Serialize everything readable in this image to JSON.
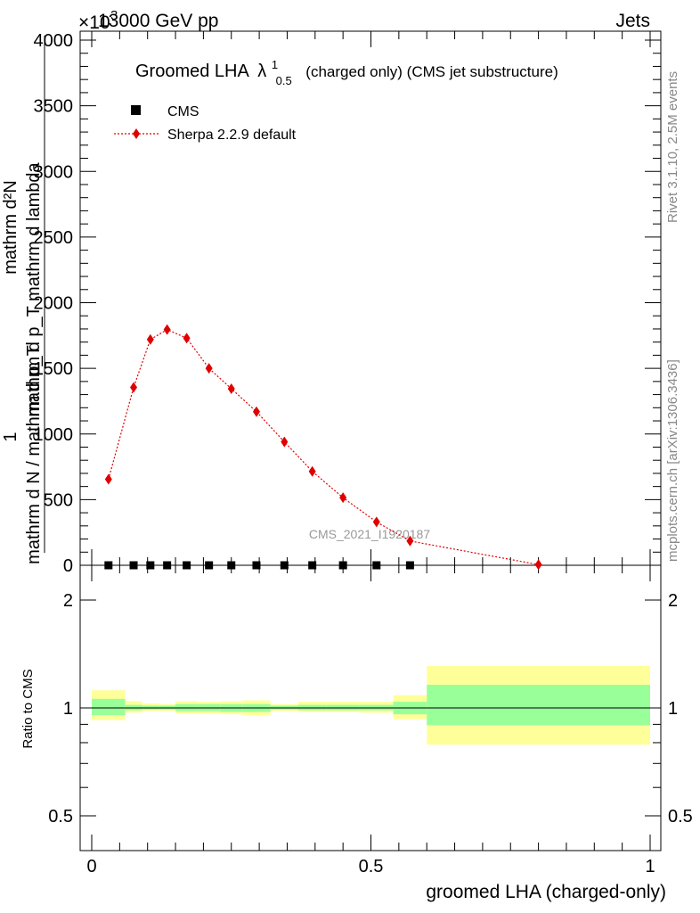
{
  "header": {
    "energy": "13000 GeV pp",
    "category": "Jets",
    "exponent": "×10",
    "exponent_power": "3"
  },
  "side_labels": {
    "version": "Rivet 3.1.10,  2.5M events",
    "site": "mcplots.cern.ch [arXiv:1306.3436]"
  },
  "watermark": "CMS_2021_I1920187",
  "title": {
    "main": "Groomed LHA",
    "symbol": "λ",
    "sup": "1",
    "sub": "0.5",
    "rest": "(charged only) (CMS jet substructure)"
  },
  "ylabel": {
    "numerator": "mathrm d²N",
    "denominator": "mathrm d p_T mathrm d lambda",
    "left": "1",
    "left_den": "mathrm d N / mathrm d p_T"
  },
  "ratio_ylabel": "Ratio to CMS",
  "xlabel": "groomed LHA (charged-only)",
  "legend": [
    {
      "label": "CMS",
      "color": "#000000",
      "marker": "square"
    },
    {
      "label": "Sherpa 2.2.9 default",
      "color": "#e00000",
      "marker": "diamond"
    }
  ],
  "chart_data": {
    "type": "line",
    "xlim": [
      0,
      1
    ],
    "ylim": [
      0,
      4000
    ],
    "y_ticks": [
      "0",
      "500",
      "1000",
      "1500",
      "2000",
      "2500",
      "3000",
      "3500",
      "4000"
    ],
    "x_ticks": [
      "0",
      "0.5",
      "1"
    ],
    "ratio_ylim": [
      0.4,
      2.5
    ],
    "ratio_y_ticks": [
      "0.5",
      "1",
      "2"
    ],
    "series": [
      {
        "name": "CMS",
        "x": [
          0.03,
          0.075,
          0.105,
          0.135,
          0.17,
          0.21,
          0.25,
          0.295,
          0.345,
          0.395,
          0.45,
          0.51,
          0.57
        ],
        "values": [
          0,
          0,
          0,
          0,
          0,
          0,
          0,
          0,
          0,
          0,
          0,
          0,
          0
        ]
      },
      {
        "name": "Sherpa 2.2.9 default",
        "x": [
          0.03,
          0.075,
          0.105,
          0.135,
          0.17,
          0.21,
          0.25,
          0.295,
          0.345,
          0.395,
          0.45,
          0.51,
          0.57,
          0.8
        ],
        "values": [
          655,
          1355,
          1720,
          1795,
          1730,
          1500,
          1345,
          1170,
          940,
          715,
          515,
          330,
          185,
          5
        ]
      }
    ],
    "ratio_bands": [
      {
        "x0": 0.0,
        "x1": 0.06,
        "green": [
          0.955,
          1.06
        ],
        "yellow": [
          0.925,
          1.12
        ]
      },
      {
        "x0": 0.06,
        "x1": 0.09,
        "green": [
          0.985,
          1.02
        ],
        "yellow": [
          0.97,
          1.045
        ]
      },
      {
        "x0": 0.09,
        "x1": 0.12,
        "green": [
          0.99,
          1.015
        ],
        "yellow": [
          0.98,
          1.03
        ]
      },
      {
        "x0": 0.12,
        "x1": 0.15,
        "green": [
          0.99,
          1.015
        ],
        "yellow": [
          0.98,
          1.025
        ]
      },
      {
        "x0": 0.15,
        "x1": 0.19,
        "green": [
          0.98,
          1.025
        ],
        "yellow": [
          0.965,
          1.045
        ]
      },
      {
        "x0": 0.19,
        "x1": 0.23,
        "green": [
          0.98,
          1.025
        ],
        "yellow": [
          0.965,
          1.04
        ]
      },
      {
        "x0": 0.23,
        "x1": 0.27,
        "green": [
          0.975,
          1.025
        ],
        "yellow": [
          0.96,
          1.045
        ]
      },
      {
        "x0": 0.27,
        "x1": 0.32,
        "green": [
          0.975,
          1.025
        ],
        "yellow": [
          0.955,
          1.05
        ]
      },
      {
        "x0": 0.32,
        "x1": 0.37,
        "green": [
          0.99,
          1.015
        ],
        "yellow": [
          0.98,
          1.025
        ]
      },
      {
        "x0": 0.37,
        "x1": 0.42,
        "green": [
          0.985,
          1.02
        ],
        "yellow": [
          0.975,
          1.04
        ]
      },
      {
        "x0": 0.42,
        "x1": 0.48,
        "green": [
          0.985,
          1.02
        ],
        "yellow": [
          0.975,
          1.04
        ]
      },
      {
        "x0": 0.48,
        "x1": 0.54,
        "green": [
          0.985,
          1.02
        ],
        "yellow": [
          0.97,
          1.04
        ]
      },
      {
        "x0": 0.54,
        "x1": 0.6,
        "green": [
          0.96,
          1.04
        ],
        "yellow": [
          0.93,
          1.085
        ]
      },
      {
        "x0": 0.6,
        "x1": 1.0,
        "green": [
          0.895,
          1.16
        ],
        "yellow": [
          0.79,
          1.31
        ]
      }
    ],
    "grid": false,
    "legend_position": "top-left"
  }
}
